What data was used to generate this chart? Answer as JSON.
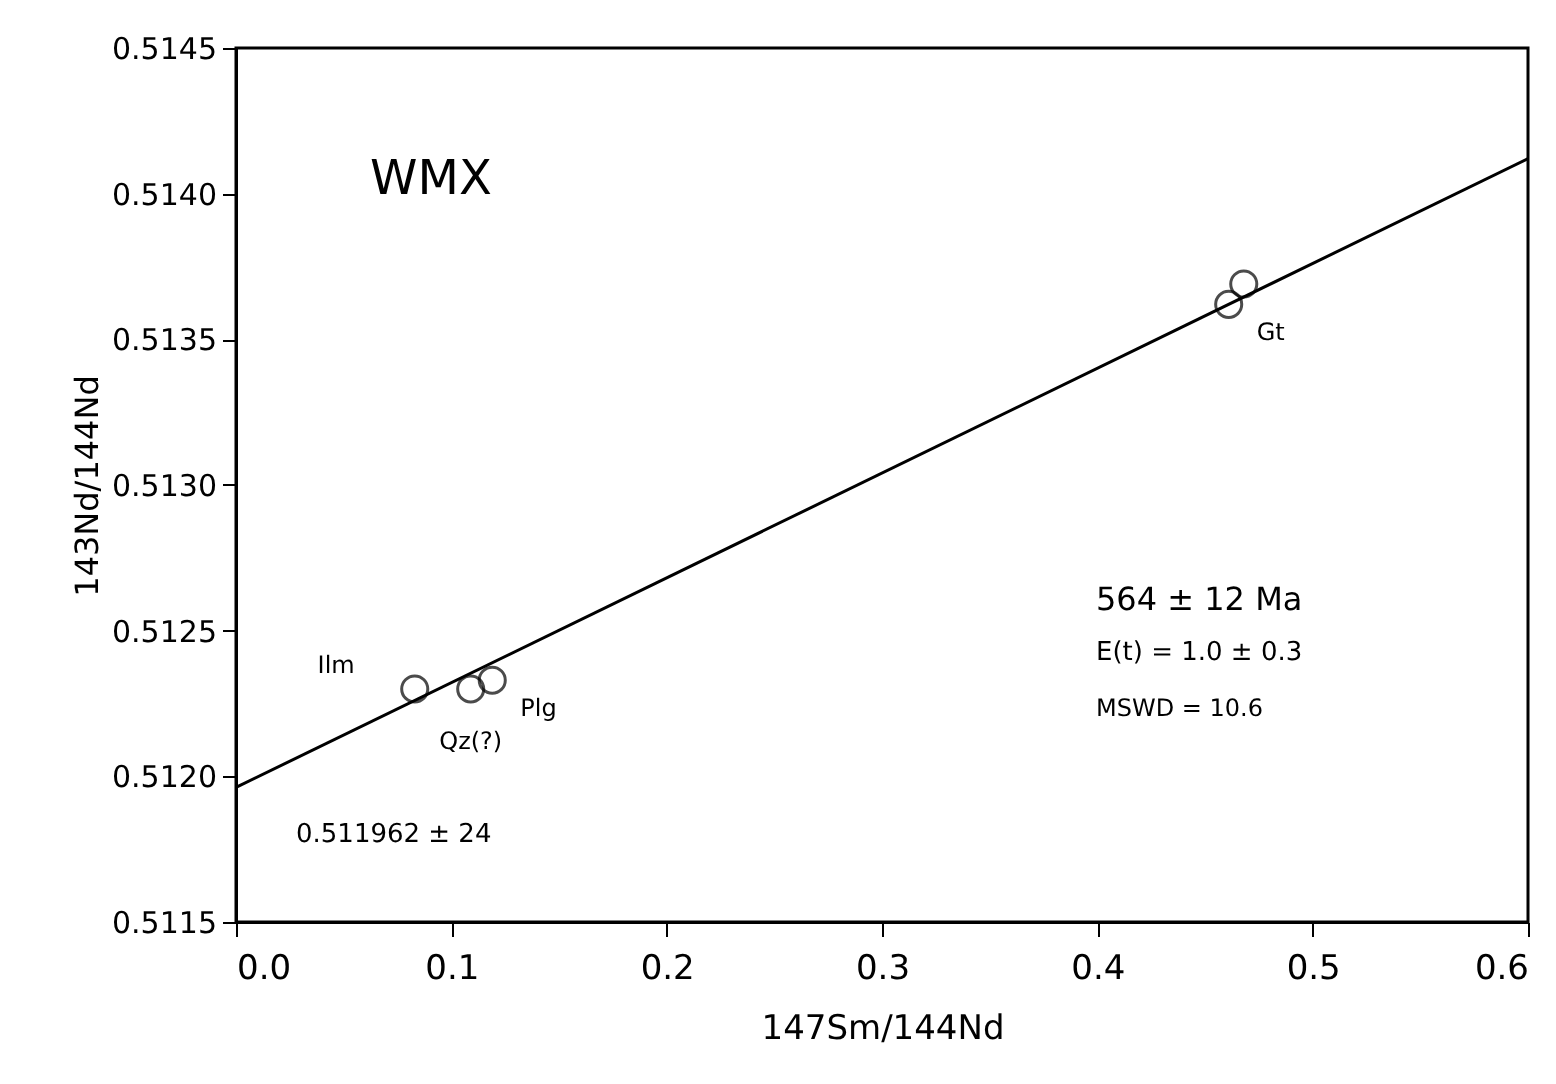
{
  "chart_data": {
    "type": "scatter",
    "xlabel": "147Sm/144Nd",
    "ylabel": "143Nd/144Nd",
    "xlim": [
      0.0,
      0.6
    ],
    "xticks": [
      {
        "value": 0.0,
        "label": "0.0"
      },
      0.1,
      0.2,
      0.3,
      0.4,
      0.5,
      0.6
    ],
    "ylim": [
      0.5115,
      0.5145
    ],
    "yticks": [
      0.5115,
      {
        "value": 0.512,
        "label": "0.5120"
      },
      0.5125,
      {
        "value": 0.513,
        "label": "0.5130"
      },
      0.5135,
      {
        "value": 0.514,
        "label": "0.5140"
      },
      0.5145
    ],
    "grid": false,
    "series": [
      {
        "type": "line",
        "color": "#000000",
        "x": [
          0.0,
          0.6
        ],
        "values": [
          0.511962,
          0.51412
        ],
        "line_style": "solid",
        "marker": "none"
      },
      {
        "color": "#000000",
        "marker": "circle",
        "x": [
          0.083,
          0.109,
          0.119,
          0.461,
          0.468
        ],
        "values": [
          0.5123,
          0.5123,
          0.51233,
          0.51362,
          0.51369
        ]
      }
    ],
    "annotations": [
      "WMX",
      "0.511962 ± 24",
      "564 ± 12 Ma",
      "E(t) = 1.0 ± 0.3",
      "MSWD = 10.6",
      {
        "text": "Ilm",
        "x": 0.083,
        "y": 0.5123
      },
      {
        "text": "Qz(?)",
        "x": 0.109,
        "y": 0.5123
      },
      {
        "text": "Plg",
        "x": 0.119,
        "y": 0.51233
      },
      {
        "text": "Gt",
        "x": 0.461,
        "y": 0.51362
      }
    ]
  }
}
